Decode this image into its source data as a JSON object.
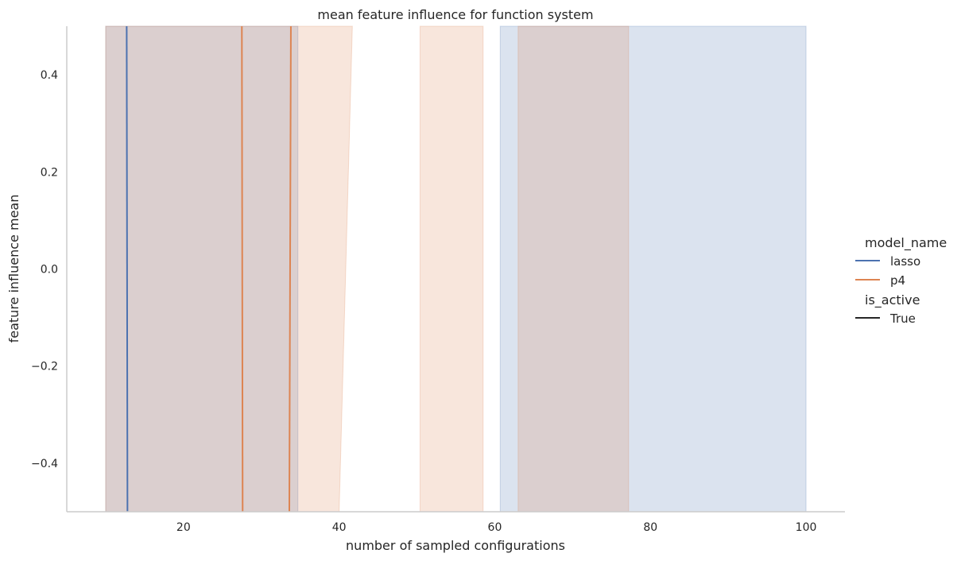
{
  "chart_data": {
    "type": "line",
    "title": "mean feature influence for function system",
    "xlabel": "number of sampled configurations",
    "ylabel": "feature influence mean",
    "xlim": [
      5,
      105
    ],
    "ylim": [
      -0.5,
      0.5
    ],
    "x_ticks": [
      20,
      40,
      60,
      80,
      100
    ],
    "x_tick_labels": [
      "20",
      "40",
      "60",
      "80",
      "100"
    ],
    "y_ticks": [
      -0.4,
      -0.2,
      0.0,
      0.2,
      0.4
    ],
    "y_tick_labels": [
      "−0.4",
      "−0.2",
      "0.0",
      "0.2",
      "0.4"
    ],
    "grid": false,
    "legend_position": "right",
    "legend": {
      "hue_title": "model_name",
      "hue_entries": [
        {
          "label": "lasso",
          "color": "#4c72b0"
        },
        {
          "label": "p4",
          "color": "#dd8452"
        }
      ],
      "style_title": "is_active",
      "style_entries": [
        {
          "label": "True",
          "color": "#262626"
        }
      ]
    },
    "series": [
      {
        "name": "lasso",
        "color": "#4c72b0",
        "lines": [
          {
            "x": [
              12.7,
              12.8
            ],
            "y": [
              0.5,
              -0.5
            ]
          }
        ],
        "bands": [
          {
            "x_top": [
              10.0,
              34.7
            ],
            "x_bottom": [
              10.0,
              34.7
            ]
          },
          {
            "x_top": [
              60.7,
              100.0
            ],
            "x_bottom": [
              60.7,
              100.0
            ]
          }
        ]
      },
      {
        "name": "p4",
        "color": "#dd8452",
        "lines": [
          {
            "x": [
              27.5,
              27.6
            ],
            "y": [
              0.5,
              -0.5
            ]
          },
          {
            "x": [
              33.8,
              33.6
            ],
            "y": [
              0.5,
              -0.5
            ]
          }
        ],
        "bands": [
          {
            "x_top": [
              10.0,
              41.7
            ],
            "x_bottom": [
              10.0,
              40.0
            ]
          },
          {
            "x_top": [
              50.4,
              58.5
            ],
            "x_bottom": [
              50.4,
              58.5
            ]
          },
          {
            "x_top": [
              63.0,
              77.2
            ],
            "x_bottom": [
              63.0,
              77.2
            ]
          }
        ]
      }
    ]
  }
}
